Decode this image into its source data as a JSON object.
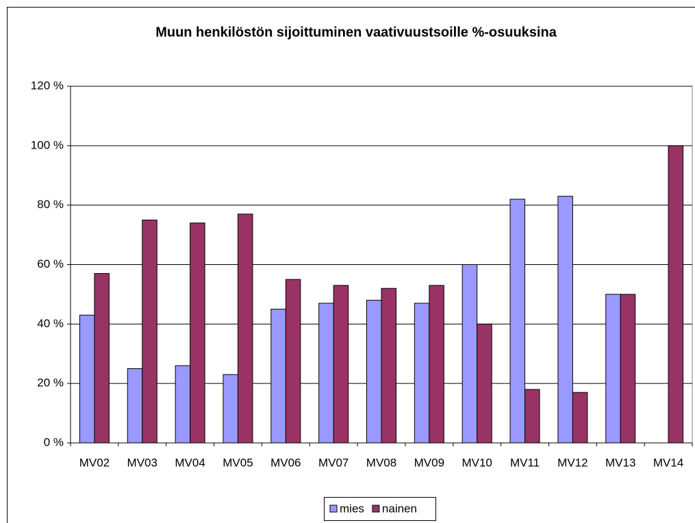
{
  "chart_data": {
    "type": "bar",
    "title": "Muun henkilöstön sijoittuminen vaativuustsoille %-osuuksina",
    "categories": [
      "MV02",
      "MV03",
      "MV04",
      "MV05",
      "MV06",
      "MV07",
      "MV08",
      "MV09",
      "MV10",
      "MV11",
      "MV12",
      "MV13",
      "MV14"
    ],
    "series": [
      {
        "name": "mies",
        "color": "#9999ff",
        "values": [
          43,
          25,
          26,
          23,
          45,
          47,
          48,
          47,
          60,
          82,
          83,
          50,
          0
        ]
      },
      {
        "name": "nainen",
        "color": "#993366",
        "values": [
          57,
          75,
          74,
          77,
          55,
          53,
          52,
          53,
          40,
          18,
          17,
          50,
          100
        ]
      }
    ],
    "ylim": [
      0,
      120
    ],
    "yticks": [
      {
        "value": 0,
        "label": "0 %"
      },
      {
        "value": 20,
        "label": "20 %"
      },
      {
        "value": 40,
        "label": "40 %"
      },
      {
        "value": 60,
        "label": "60 %"
      },
      {
        "value": 80,
        "label": "80 %"
      },
      {
        "value": 100,
        "label": "100 %"
      },
      {
        "value": 120,
        "label": "120 %"
      }
    ],
    "grid": true
  }
}
